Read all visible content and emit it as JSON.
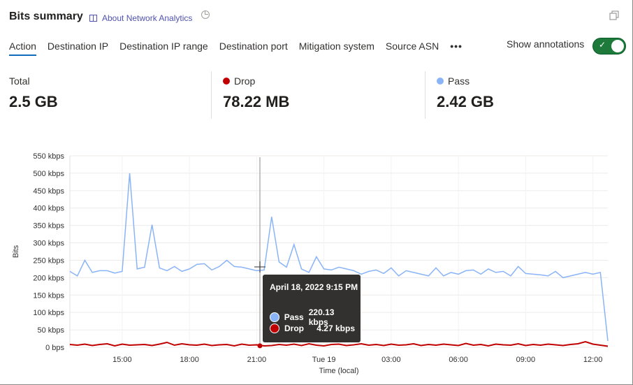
{
  "header": {
    "title": "Bits summary",
    "about_link": "About Network Analytics"
  },
  "tabs": [
    {
      "label": "Action",
      "active": true
    },
    {
      "label": "Destination IP"
    },
    {
      "label": "Destination IP range"
    },
    {
      "label": "Destination port"
    },
    {
      "label": "Mitigation system"
    },
    {
      "label": "Source ASN"
    }
  ],
  "more_label": "•••",
  "annotations": {
    "label": "Show annotations",
    "on": true,
    "color": "#1e7a3b"
  },
  "metrics": [
    {
      "label": "Total",
      "value": "2.5 GB"
    },
    {
      "label": "Drop",
      "value": "78.22 MB",
      "color": "#c00000"
    },
    {
      "label": "Pass",
      "value": "2.42 GB",
      "color": "#8ab4f8"
    }
  ],
  "tooltip": {
    "title": "April 18, 2022 9:15 PM",
    "rows": [
      {
        "name": "Pass",
        "value": "220.13 kbps",
        "color": "#8ab4f8"
      },
      {
        "name": "Drop",
        "value": "4.27 kbps",
        "color": "#c00000"
      }
    ]
  },
  "chart_data": {
    "type": "line",
    "ylabel": "Bits",
    "xlabel": "Time (local)",
    "ylim": [
      0,
      550
    ],
    "grid": true,
    "yticks": [
      "0 bps",
      "50 kbps",
      "100 kbps",
      "150 kbps",
      "200 kbps",
      "250 kbps",
      "300 kbps",
      "350 kbps",
      "400 kbps",
      "450 kbps",
      "500 kbps",
      "550 kbps"
    ],
    "xticks": [
      {
        "t": "15:00",
        "label": "15:00"
      },
      {
        "t": "18:00",
        "label": "18:00"
      },
      {
        "t": "21:00",
        "label": "21:00"
      },
      {
        "t": "24:00",
        "label": "Tue 19"
      },
      {
        "t": "27:00",
        "label": "03:00"
      },
      {
        "t": "30:00",
        "label": "06:00"
      },
      {
        "t": "33:00",
        "label": "09:00"
      },
      {
        "t": "36:00",
        "label": "12:00"
      }
    ],
    "x_unit": "kbps",
    "times": [
      "12:40",
      "13:00",
      "13:20",
      "13:40",
      "14:00",
      "14:20",
      "14:40",
      "15:00",
      "15:20",
      "15:40",
      "16:00",
      "16:20",
      "16:40",
      "17:00",
      "17:20",
      "17:40",
      "18:00",
      "18:20",
      "18:40",
      "19:00",
      "19:20",
      "19:40",
      "20:00",
      "20:20",
      "20:40",
      "21:00",
      "21:20",
      "21:40",
      "22:00",
      "22:20",
      "22:40",
      "23:00",
      "23:20",
      "23:40",
      "00:00",
      "00:20",
      "00:40",
      "01:00",
      "01:20",
      "01:40",
      "02:00",
      "02:20",
      "02:40",
      "03:00",
      "03:20",
      "03:40",
      "04:00",
      "04:20",
      "04:40",
      "05:00",
      "05:20",
      "05:40",
      "06:00",
      "06:20",
      "06:40",
      "07:00",
      "07:20",
      "07:40",
      "08:00",
      "08:20",
      "08:40",
      "09:00",
      "09:20",
      "09:40",
      "10:00",
      "10:20",
      "10:40",
      "11:00",
      "11:20",
      "11:40",
      "12:00",
      "12:20",
      "12:40"
    ],
    "series": [
      {
        "name": "Pass",
        "color": "#8ab4f8",
        "values": [
          218,
          205,
          250,
          215,
          220,
          220,
          213,
          218,
          500,
          225,
          230,
          352,
          228,
          220,
          232,
          218,
          225,
          238,
          240,
          222,
          232,
          250,
          232,
          230,
          225,
          220,
          222,
          375,
          245,
          230,
          295,
          225,
          215,
          260,
          225,
          222,
          230,
          225,
          220,
          210,
          218,
          222,
          212,
          228,
          205,
          220,
          215,
          210,
          205,
          228,
          205,
          215,
          210,
          220,
          222,
          210,
          225,
          215,
          218,
          205,
          232,
          212,
          210,
          208,
          205,
          218,
          200,
          205,
          210,
          215,
          210,
          215,
          18
        ]
      },
      {
        "name": "Drop",
        "color": "#c00000",
        "values": [
          8,
          6,
          9,
          5,
          8,
          10,
          4,
          9,
          6,
          7,
          8,
          5,
          9,
          14,
          6,
          10,
          7,
          6,
          9,
          5,
          7,
          8,
          4,
          9,
          6,
          7,
          4,
          5,
          8,
          6,
          9,
          5,
          10,
          6,
          4,
          8,
          9,
          5,
          7,
          10,
          6,
          8,
          5,
          9,
          6,
          7,
          10,
          5,
          8,
          6,
          9,
          7,
          5,
          11,
          6,
          8,
          4,
          9,
          7,
          6,
          10,
          5,
          8,
          6,
          9,
          7,
          5,
          8,
          10,
          16,
          9,
          6,
          3
        ]
      }
    ]
  }
}
